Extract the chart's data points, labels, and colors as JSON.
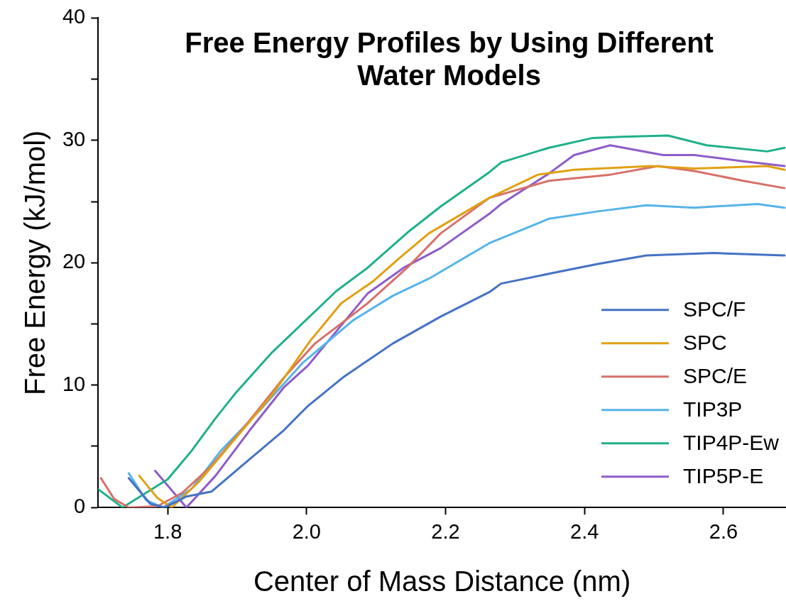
{
  "chart_data": {
    "type": "line",
    "title": "Free Energy Profiles by Using Different Water Models",
    "xlabel": "Center of Mass Distance (nm)",
    "ylabel": "Free Energy (kJ/mol)",
    "xlim": [
      1.7,
      2.69
    ],
    "ylim": [
      0,
      40
    ],
    "xticks": [
      {
        "value": 1.8,
        "label": "1.8"
      },
      {
        "value": 2.0,
        "label": "2.0"
      },
      {
        "value": 2.2,
        "label": "2.2"
      },
      {
        "value": 2.4,
        "label": "2.4"
      },
      {
        "value": 2.6,
        "label": "2.6"
      }
    ],
    "yticks": [
      0,
      {
        "value": 5,
        "label": null
      },
      10,
      {
        "value": 15,
        "label": null
      },
      20,
      {
        "value": 25,
        "label": null
      },
      30,
      {
        "value": 35,
        "label": null
      },
      40
    ],
    "grid": false,
    "legend": "bottom right",
    "marker": "none",
    "line_style": "solid",
    "series": [
      {
        "name": "SPC/F",
        "color": "#4472c4",
        "x": [
          1.744,
          1.775,
          1.796,
          1.827,
          1.863,
          1.915,
          1.967,
          2.002,
          2.054,
          2.124,
          2.193,
          2.263,
          2.28,
          2.349,
          2.419,
          2.489,
          2.586,
          2.688
        ],
        "values": [
          2.4,
          0.3,
          0,
          0.9,
          1.3,
          3.8,
          6.3,
          8.3,
          10.7,
          13.4,
          15.6,
          17.6,
          18.3,
          19.1,
          19.9,
          20.6,
          20.8,
          20.6
        ]
      },
      {
        "name": "SPC",
        "color": "#e0a012",
        "x": [
          1.759,
          1.785,
          1.806,
          1.845,
          1.897,
          1.949,
          2.005,
          2.05,
          2.096,
          2.134,
          2.176,
          2.263,
          2.333,
          2.385,
          2.496,
          2.558,
          2.663,
          2.688
        ],
        "values": [
          2.6,
          0.8,
          0,
          2.1,
          5.6,
          9.1,
          13.6,
          16.7,
          18.5,
          20.4,
          22.4,
          25.3,
          27.2,
          27.6,
          27.9,
          27.7,
          27.9,
          27.6
        ]
      },
      {
        "name": "SPC/E",
        "color": "#d6706a",
        "x": [
          1.704,
          1.723,
          1.744,
          1.785,
          1.821,
          1.863,
          1.915,
          1.967,
          2.012,
          2.088,
          2.145,
          2.193,
          2.263,
          2.349,
          2.437,
          2.506,
          2.558,
          2.628,
          2.688
        ],
        "values": [
          2.4,
          0.7,
          0,
          0.1,
          1.2,
          3.4,
          6.9,
          10.6,
          13.4,
          16.7,
          19.6,
          22.4,
          25.3,
          26.7,
          27.2,
          27.9,
          27.5,
          26.7,
          26.1
        ]
      },
      {
        "name": "TIP3P",
        "color": "#56b4e9",
        "x": [
          1.744,
          1.769,
          1.793,
          1.834,
          1.876,
          1.932,
          1.994,
          2.019,
          2.067,
          2.124,
          2.176,
          2.263,
          2.349,
          2.419,
          2.489,
          2.558,
          2.649,
          2.688
        ],
        "values": [
          2.8,
          0.6,
          0,
          1.5,
          4.6,
          7.9,
          11.8,
          13.0,
          15.3,
          17.3,
          18.7,
          21.6,
          23.6,
          24.2,
          24.7,
          24.5,
          24.8,
          24.5
        ]
      },
      {
        "name": "TIP4P-Ew",
        "color": "#1fb08a",
        "x": [
          1.7,
          1.735,
          1.8,
          1.834,
          1.869,
          1.897,
          1.949,
          2.043,
          2.088,
          2.148,
          2.193,
          2.263,
          2.28,
          2.349,
          2.412,
          2.454,
          2.52,
          2.576,
          2.663,
          2.688
        ],
        "values": [
          1.5,
          0,
          2.3,
          4.6,
          7.3,
          9.3,
          12.6,
          17.7,
          19.6,
          22.6,
          24.6,
          27.4,
          28.2,
          29.4,
          30.2,
          30.3,
          30.4,
          29.6,
          29.1,
          29.4
        ]
      },
      {
        "name": "TIP5P-E",
        "color": "#8e5cc8",
        "x": [
          1.782,
          1.827,
          1.869,
          1.918,
          1.967,
          2.002,
          2.088,
          2.14,
          2.193,
          2.263,
          2.28,
          2.349,
          2.385,
          2.437,
          2.513,
          2.558,
          2.628,
          2.688
        ],
        "values": [
          3.0,
          0,
          2.6,
          6.3,
          9.8,
          11.6,
          17.5,
          19.6,
          21.2,
          24.0,
          24.8,
          27.3,
          28.8,
          29.6,
          28.8,
          28.8,
          28.3,
          27.9
        ]
      }
    ]
  }
}
